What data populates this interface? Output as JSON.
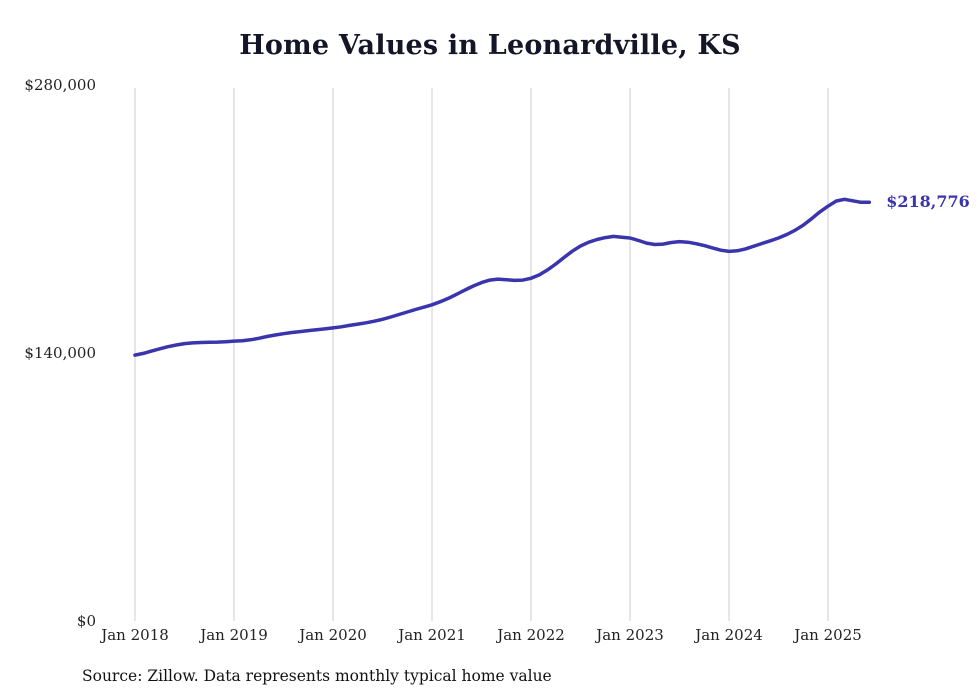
{
  "chart_data": {
    "type": "line",
    "title": "Home Values in Leonardville, KS",
    "xlabel": "",
    "ylabel": "",
    "ylim": [
      0,
      280000
    ],
    "grid": "vertical-only",
    "legend": "none",
    "line_color": "#3a35ad",
    "gridline_color": "#cccccc",
    "y_ticks": [
      {
        "label": "$280,000",
        "value": 280000
      },
      {
        "label": "$140,000",
        "value": 140000
      },
      {
        "label": "$0",
        "value": 0
      }
    ],
    "x_tick_labels": [
      "Jan 2018",
      "Jan 2019",
      "Jan 2020",
      "Jan 2021",
      "Jan 2022",
      "Jan 2023",
      "Jan 2024",
      "Jan 2025"
    ],
    "end_label": "$218,776",
    "end_value": 218776,
    "months": [
      "2018-01",
      "2018-02",
      "2018-03",
      "2018-04",
      "2018-05",
      "2018-06",
      "2018-07",
      "2018-08",
      "2018-09",
      "2018-10",
      "2018-11",
      "2018-12",
      "2019-01",
      "2019-02",
      "2019-03",
      "2019-04",
      "2019-05",
      "2019-06",
      "2019-07",
      "2019-08",
      "2019-09",
      "2019-10",
      "2019-11",
      "2019-12",
      "2020-01",
      "2020-02",
      "2020-03",
      "2020-04",
      "2020-05",
      "2020-06",
      "2020-07",
      "2020-08",
      "2020-09",
      "2020-10",
      "2020-11",
      "2020-12",
      "2021-01",
      "2021-02",
      "2021-03",
      "2021-04",
      "2021-05",
      "2021-06",
      "2021-07",
      "2021-08",
      "2021-09",
      "2021-10",
      "2021-11",
      "2021-12",
      "2022-01",
      "2022-02",
      "2022-03",
      "2022-04",
      "2022-05",
      "2022-06",
      "2022-07",
      "2022-08",
      "2022-09",
      "2022-10",
      "2022-11",
      "2022-12",
      "2023-01",
      "2023-02",
      "2023-03",
      "2023-04",
      "2023-05",
      "2023-06",
      "2023-07",
      "2023-08",
      "2023-09",
      "2023-10",
      "2023-11",
      "2023-12",
      "2024-01",
      "2024-02",
      "2024-03",
      "2024-04",
      "2024-05",
      "2024-06",
      "2024-07",
      "2024-08",
      "2024-09",
      "2024-10",
      "2024-11",
      "2024-12",
      "2025-01",
      "2025-02",
      "2025-03",
      "2025-04",
      "2025-05",
      "2025-06"
    ],
    "values": [
      138900,
      139800,
      141000,
      142200,
      143300,
      144200,
      144900,
      145300,
      145500,
      145600,
      145700,
      145900,
      146200,
      146400,
      146900,
      147700,
      148600,
      149400,
      150100,
      150700,
      151200,
      151700,
      152100,
      152600,
      153100,
      153700,
      154400,
      155100,
      155800,
      156600,
      157600,
      158800,
      160100,
      161400,
      162700,
      163900,
      165200,
      166800,
      168600,
      170700,
      172900,
      175000,
      176800,
      178100,
      178600,
      178300,
      177900,
      178100,
      179000,
      180800,
      183400,
      186500,
      189900,
      193200,
      195900,
      197900,
      199300,
      200300,
      200900,
      200500,
      200100,
      198800,
      197400,
      196700,
      196900,
      197700,
      198200,
      197900,
      197100,
      196100,
      194900,
      193700,
      193100,
      193400,
      194400,
      195800,
      197200,
      198600,
      200100,
      201900,
      204100,
      206800,
      210100,
      213700,
      216700,
      219400,
      220300,
      219500,
      218700,
      218776
    ]
  },
  "source": {
    "text": "Source: Zillow. Data represents monthly typical home value"
  }
}
